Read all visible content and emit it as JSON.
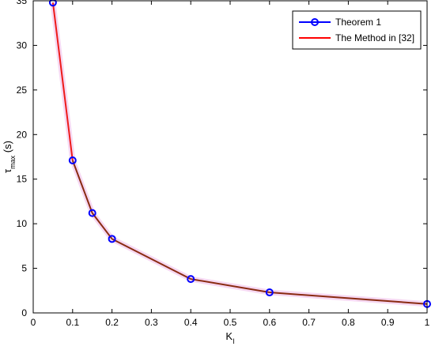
{
  "chart_data": {
    "type": "line",
    "title": "",
    "xlabel": "K",
    "xlabel_sub": "I",
    "ylabel": "τ",
    "ylabel_sub": "max",
    "ylabel_suffix": " (s)",
    "xlim": [
      0,
      1
    ],
    "ylim": [
      0,
      35
    ],
    "xticks": [
      0,
      0.1,
      0.2,
      0.3,
      0.4,
      0.5,
      0.6,
      0.7,
      0.8,
      0.9,
      1
    ],
    "yticks": [
      0,
      5,
      10,
      15,
      20,
      25,
      30,
      35
    ],
    "grid": false,
    "legend_position": "top-right",
    "series": [
      {
        "name": "Theorem 1",
        "color": "#0000ff",
        "marker": "circle",
        "x": [
          0.05,
          0.1,
          0.15,
          0.2,
          0.4,
          0.6,
          1.0
        ],
        "y": [
          34.8,
          17.1,
          11.2,
          8.3,
          3.8,
          2.3,
          1.0
        ]
      },
      {
        "name": "The Method in [32]",
        "color": "#ff0000",
        "marker": "none",
        "x": [
          0.05,
          0.1,
          0.15,
          0.2,
          0.4,
          0.6,
          1.0
        ],
        "y": [
          34.8,
          17.1,
          11.2,
          8.3,
          3.8,
          2.3,
          1.0
        ]
      }
    ]
  }
}
